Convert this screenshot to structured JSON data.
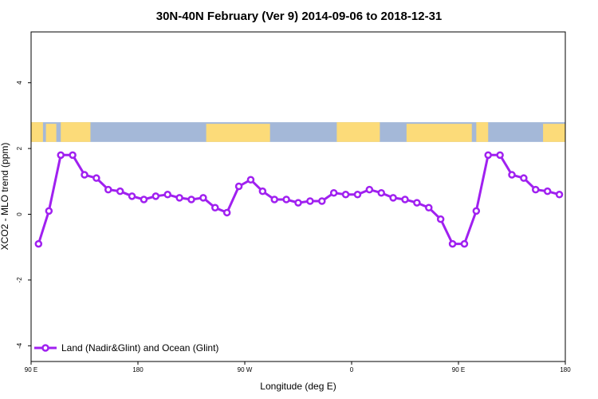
{
  "chart_data": {
    "type": "line",
    "title": "30N-40N February (Ver 9)   2014-09-06 to 2018-12-31",
    "xlabel": "Longitude (deg E)",
    "ylabel": "XCO2 - MLO trend (ppm)",
    "xlim": [
      90,
      450
    ],
    "ylim": [
      -4,
      5
    ],
    "x_ticks": [
      {
        "value": 90,
        "label": "90 E"
      },
      {
        "value": 162,
        "label": "180"
      },
      {
        "value": 234,
        "label": "90 W"
      },
      {
        "value": 306,
        "label": "0"
      },
      {
        "value": 378,
        "label": "90 E"
      },
      {
        "value": 450,
        "label": "180"
      }
    ],
    "y_ticks": [
      -4,
      -2,
      0,
      2,
      4
    ],
    "grid": false,
    "legend_position": "bottom-left",
    "series": [
      {
        "name": "Land (Nadir&Glint) and Ocean (Glint)",
        "color": "#a020f0",
        "x": [
          95,
          102,
          110,
          118,
          126,
          134,
          142,
          150,
          158,
          166,
          174,
          182,
          190,
          198,
          206,
          214,
          222,
          230,
          238,
          246,
          254,
          262,
          270,
          278,
          286,
          294,
          302,
          310,
          318,
          326,
          334,
          342,
          350,
          358,
          366,
          374,
          382,
          390,
          398,
          406,
          414,
          422,
          430,
          438,
          446
        ],
        "y": [
          -0.9,
          0.1,
          1.8,
          1.8,
          1.2,
          1.1,
          0.75,
          0.7,
          0.55,
          0.45,
          0.55,
          0.6,
          0.5,
          0.45,
          0.5,
          0.2,
          0.05,
          0.85,
          1.05,
          0.7,
          0.45,
          0.45,
          0.35,
          0.4,
          0.4,
          0.65,
          0.6,
          0.6,
          0.75,
          0.65,
          0.5,
          0.45,
          0.35,
          0.2,
          -0.15,
          -0.9,
          -0.9,
          0.1,
          1.8,
          1.8,
          1.2,
          1.1,
          0.75,
          0.7,
          0.6
        ]
      }
    ],
    "map_strip": {
      "ocean_color": "#a4b8d8",
      "land_color": "#fcdb79",
      "land_ranges": [
        [
          90,
          98
        ],
        [
          100,
          107
        ],
        [
          110,
          130
        ],
        [
          208,
          251
        ],
        [
          296,
          325
        ],
        [
          343,
          387
        ],
        [
          390,
          398
        ],
        [
          435,
          450
        ]
      ],
      "y_range": [
        2.2,
        2.8
      ]
    }
  }
}
